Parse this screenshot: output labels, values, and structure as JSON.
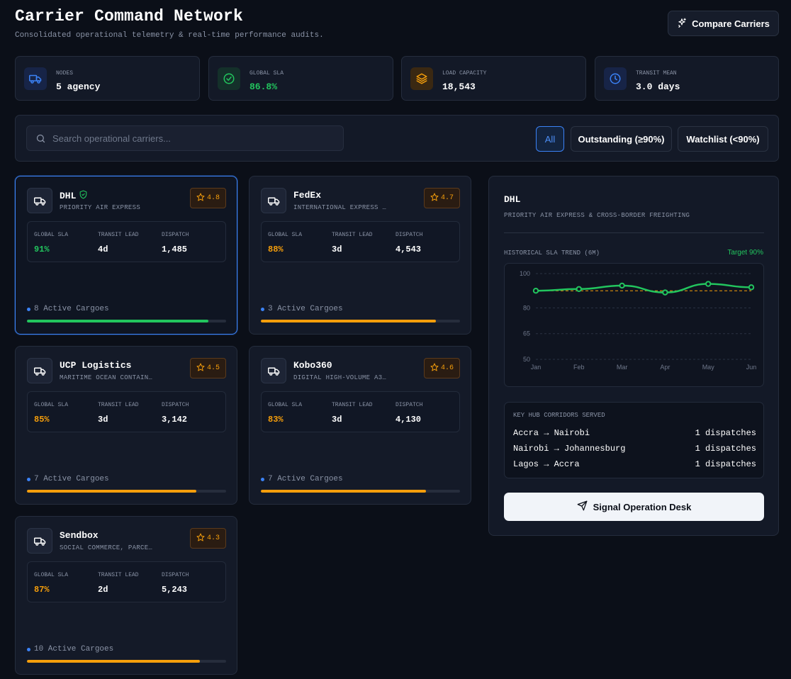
{
  "header": {
    "title": "Carrier Command Network",
    "subtitle": "Consolidated operational telemetry & real-time performance audits.",
    "compare_label": "Compare Carriers"
  },
  "stats": [
    {
      "label": "NODES",
      "value": "5 agency",
      "icon": "truck-icon",
      "color": "#3b82f6"
    },
    {
      "label": "GLOBAL SLA",
      "value": "86.8%",
      "icon": "check-circle-icon",
      "color": "#22c55e"
    },
    {
      "label": "LOAD CAPACITY",
      "value": "18,543",
      "icon": "layers-icon",
      "color": "#f59e0b"
    },
    {
      "label": "TRANSIT MEAN",
      "value": "3.0 days",
      "icon": "clock-icon",
      "color": "#3b82f6"
    }
  ],
  "search": {
    "placeholder": "Search operational carriers..."
  },
  "filters": [
    "All",
    "Outstanding (≥90%)",
    "Watchlist (<90%)"
  ],
  "metric_labels": {
    "sla": "GLOBAL SLA",
    "transit": "TRANSIT LEAD",
    "dispatch": "DISPATCH"
  },
  "carriers": [
    {
      "name": "DHL",
      "tagline": "PRIORITY AIR EXPRESS",
      "rating": "4.8",
      "sla": "91%",
      "sla_color": "#22c55e",
      "transit": "4d",
      "dispatch": "1,485",
      "active": "8 Active Cargoes",
      "progress": 0.91,
      "bar_color": "#22c55e",
      "verified": true
    },
    {
      "name": "FedEx",
      "tagline": "INTERNATIONAL EXPRESS …",
      "rating": "4.7",
      "sla": "88%",
      "sla_color": "#f59e0b",
      "transit": "3d",
      "dispatch": "4,543",
      "active": "3 Active Cargoes",
      "progress": 0.88,
      "bar_color": "#f59e0b",
      "verified": false
    },
    {
      "name": "UCP Logistics",
      "tagline": "MARITIME OCEAN CONTAIN…",
      "rating": "4.5",
      "sla": "85%",
      "sla_color": "#f59e0b",
      "transit": "3d",
      "dispatch": "3,142",
      "active": "7 Active Cargoes",
      "progress": 0.85,
      "bar_color": "#f59e0b",
      "verified": false
    },
    {
      "name": "Kobo360",
      "tagline": "DIGITAL HIGH-VOLUME A3…",
      "rating": "4.6",
      "sla": "83%",
      "sla_color": "#f59e0b",
      "transit": "3d",
      "dispatch": "4,130",
      "active": "7 Active Cargoes",
      "progress": 0.83,
      "bar_color": "#f59e0b",
      "verified": false
    },
    {
      "name": "Sendbox",
      "tagline": "SOCIAL COMMERCE, PARCE…",
      "rating": "4.3",
      "sla": "87%",
      "sla_color": "#f59e0b",
      "transit": "2d",
      "dispatch": "5,243",
      "active": "10 Active Cargoes",
      "progress": 0.87,
      "bar_color": "#f59e0b",
      "verified": false
    }
  ],
  "detail": {
    "name": "DHL",
    "subtitle": "PRIORITY AIR EXPRESS & CROSS-BORDER FREIGHTING",
    "trend_label": "HISTORICAL SLA TREND (6M)",
    "target_label": "Target 90%",
    "corridors_title": "KEY HUB CORRIDORS SERVED",
    "corridors": [
      {
        "route": "Accra → Nairobi",
        "count": "1 dispatches"
      },
      {
        "route": "Nairobi → Johannesburg",
        "count": "1 dispatches"
      },
      {
        "route": "Lagos → Accra",
        "count": "1 dispatches"
      }
    ],
    "signal_label": "Signal Operation Desk"
  },
  "chart_data": {
    "type": "line",
    "categories": [
      "Jan",
      "Feb",
      "Mar",
      "Apr",
      "May",
      "Jun"
    ],
    "series": [
      {
        "values": [
          90,
          91,
          93,
          89,
          94,
          92
        ],
        "color": "#22c55e"
      }
    ],
    "target": 90,
    "yticks": [
      50,
      65,
      80,
      100
    ],
    "ylim": [
      50,
      100
    ],
    "xlabel": "",
    "ylabel": "",
    "grid": true
  }
}
